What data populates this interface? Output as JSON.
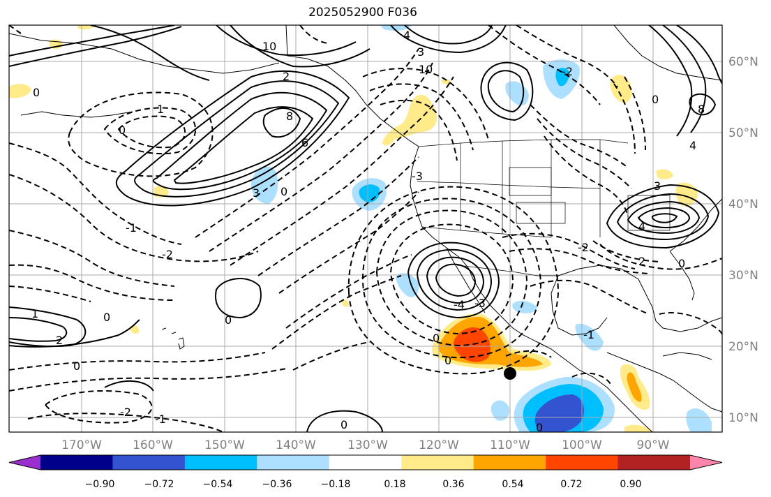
{
  "title": "2025052900 F036",
  "map": {
    "projection": "cylindrical",
    "lon_range_deg": [
      -180,
      -80
    ],
    "lat_range_deg": [
      8,
      65
    ],
    "gridlines": true
  },
  "longitude_labels": [
    "170°W",
    "160°W",
    "150°W",
    "140°W",
    "130°W",
    "120°W",
    "110°W",
    "100°W",
    "90°W"
  ],
  "latitude_labels": [
    "60°N",
    "50°N",
    "40°N",
    "30°N",
    "20°N",
    "10°N"
  ],
  "colorbar": {
    "ticks": [
      "−0.90",
      "−0.72",
      "−0.54",
      "−0.36",
      "−0.18",
      "0.18",
      "0.36",
      "0.54",
      "0.72",
      "0.90"
    ],
    "colors": [
      "#9b30d0",
      "#00008b",
      "#3353d0",
      "#00bfff",
      "#ade0ff",
      "#ffffff",
      "#ffeb8a",
      "#ffa500",
      "#ff4500",
      "#b22222",
      "#ff85ac"
    ]
  },
  "contour_labels": [
    "0",
    "1",
    "2",
    "3",
    "4",
    "6",
    "8",
    "10",
    "-1",
    "-2",
    "-3",
    "-4"
  ],
  "marker": "black-dot"
}
